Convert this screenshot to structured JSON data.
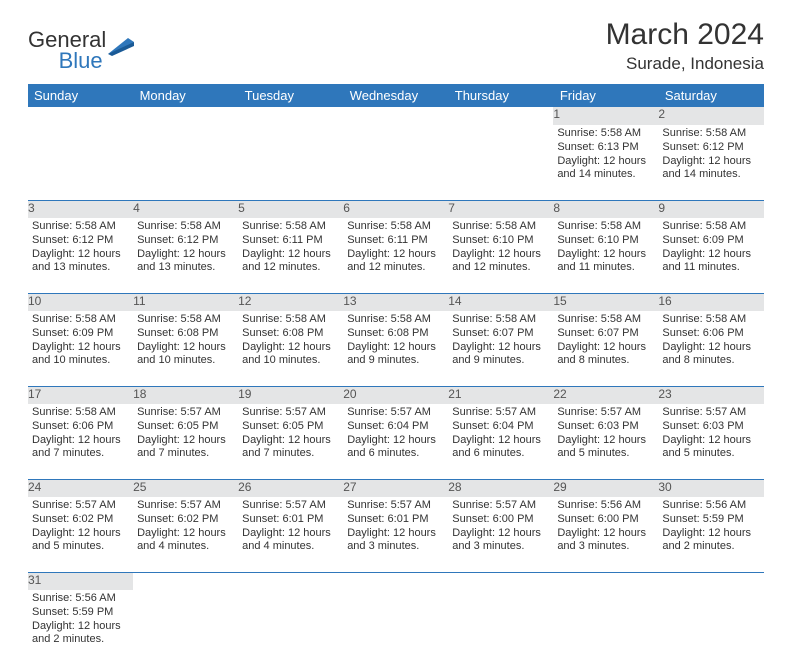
{
  "logo": {
    "general": "General",
    "blue": "Blue"
  },
  "title": "March 2024",
  "location": "Surade, Indonesia",
  "colors": {
    "header_bg": "#2f77bb",
    "header_text": "#ffffff",
    "daynum_bg": "#e4e5e6",
    "daynum_text": "#555555",
    "border": "#2f77bb",
    "body_text": "#333333",
    "page_bg": "#ffffff"
  },
  "weekdays": [
    "Sunday",
    "Monday",
    "Tuesday",
    "Wednesday",
    "Thursday",
    "Friday",
    "Saturday"
  ],
  "cell_fontsize": 11,
  "header_fontsize": 13,
  "title_fontsize": 30,
  "location_fontsize": 17,
  "weeks": [
    [
      null,
      null,
      null,
      null,
      null,
      {
        "n": "1",
        "sr": "Sunrise: 5:58 AM",
        "ss": "Sunset: 6:13 PM",
        "d1": "Daylight: 12 hours",
        "d2": "and 14 minutes."
      },
      {
        "n": "2",
        "sr": "Sunrise: 5:58 AM",
        "ss": "Sunset: 6:12 PM",
        "d1": "Daylight: 12 hours",
        "d2": "and 14 minutes."
      }
    ],
    [
      {
        "n": "3",
        "sr": "Sunrise: 5:58 AM",
        "ss": "Sunset: 6:12 PM",
        "d1": "Daylight: 12 hours",
        "d2": "and 13 minutes."
      },
      {
        "n": "4",
        "sr": "Sunrise: 5:58 AM",
        "ss": "Sunset: 6:12 PM",
        "d1": "Daylight: 12 hours",
        "d2": "and 13 minutes."
      },
      {
        "n": "5",
        "sr": "Sunrise: 5:58 AM",
        "ss": "Sunset: 6:11 PM",
        "d1": "Daylight: 12 hours",
        "d2": "and 12 minutes."
      },
      {
        "n": "6",
        "sr": "Sunrise: 5:58 AM",
        "ss": "Sunset: 6:11 PM",
        "d1": "Daylight: 12 hours",
        "d2": "and 12 minutes."
      },
      {
        "n": "7",
        "sr": "Sunrise: 5:58 AM",
        "ss": "Sunset: 6:10 PM",
        "d1": "Daylight: 12 hours",
        "d2": "and 12 minutes."
      },
      {
        "n": "8",
        "sr": "Sunrise: 5:58 AM",
        "ss": "Sunset: 6:10 PM",
        "d1": "Daylight: 12 hours",
        "d2": "and 11 minutes."
      },
      {
        "n": "9",
        "sr": "Sunrise: 5:58 AM",
        "ss": "Sunset: 6:09 PM",
        "d1": "Daylight: 12 hours",
        "d2": "and 11 minutes."
      }
    ],
    [
      {
        "n": "10",
        "sr": "Sunrise: 5:58 AM",
        "ss": "Sunset: 6:09 PM",
        "d1": "Daylight: 12 hours",
        "d2": "and 10 minutes."
      },
      {
        "n": "11",
        "sr": "Sunrise: 5:58 AM",
        "ss": "Sunset: 6:08 PM",
        "d1": "Daylight: 12 hours",
        "d2": "and 10 minutes."
      },
      {
        "n": "12",
        "sr": "Sunrise: 5:58 AM",
        "ss": "Sunset: 6:08 PM",
        "d1": "Daylight: 12 hours",
        "d2": "and 10 minutes."
      },
      {
        "n": "13",
        "sr": "Sunrise: 5:58 AM",
        "ss": "Sunset: 6:08 PM",
        "d1": "Daylight: 12 hours",
        "d2": "and 9 minutes."
      },
      {
        "n": "14",
        "sr": "Sunrise: 5:58 AM",
        "ss": "Sunset: 6:07 PM",
        "d1": "Daylight: 12 hours",
        "d2": "and 9 minutes."
      },
      {
        "n": "15",
        "sr": "Sunrise: 5:58 AM",
        "ss": "Sunset: 6:07 PM",
        "d1": "Daylight: 12 hours",
        "d2": "and 8 minutes."
      },
      {
        "n": "16",
        "sr": "Sunrise: 5:58 AM",
        "ss": "Sunset: 6:06 PM",
        "d1": "Daylight: 12 hours",
        "d2": "and 8 minutes."
      }
    ],
    [
      {
        "n": "17",
        "sr": "Sunrise: 5:58 AM",
        "ss": "Sunset: 6:06 PM",
        "d1": "Daylight: 12 hours",
        "d2": "and 7 minutes."
      },
      {
        "n": "18",
        "sr": "Sunrise: 5:57 AM",
        "ss": "Sunset: 6:05 PM",
        "d1": "Daylight: 12 hours",
        "d2": "and 7 minutes."
      },
      {
        "n": "19",
        "sr": "Sunrise: 5:57 AM",
        "ss": "Sunset: 6:05 PM",
        "d1": "Daylight: 12 hours",
        "d2": "and 7 minutes."
      },
      {
        "n": "20",
        "sr": "Sunrise: 5:57 AM",
        "ss": "Sunset: 6:04 PM",
        "d1": "Daylight: 12 hours",
        "d2": "and 6 minutes."
      },
      {
        "n": "21",
        "sr": "Sunrise: 5:57 AM",
        "ss": "Sunset: 6:04 PM",
        "d1": "Daylight: 12 hours",
        "d2": "and 6 minutes."
      },
      {
        "n": "22",
        "sr": "Sunrise: 5:57 AM",
        "ss": "Sunset: 6:03 PM",
        "d1": "Daylight: 12 hours",
        "d2": "and 5 minutes."
      },
      {
        "n": "23",
        "sr": "Sunrise: 5:57 AM",
        "ss": "Sunset: 6:03 PM",
        "d1": "Daylight: 12 hours",
        "d2": "and 5 minutes."
      }
    ],
    [
      {
        "n": "24",
        "sr": "Sunrise: 5:57 AM",
        "ss": "Sunset: 6:02 PM",
        "d1": "Daylight: 12 hours",
        "d2": "and 5 minutes."
      },
      {
        "n": "25",
        "sr": "Sunrise: 5:57 AM",
        "ss": "Sunset: 6:02 PM",
        "d1": "Daylight: 12 hours",
        "d2": "and 4 minutes."
      },
      {
        "n": "26",
        "sr": "Sunrise: 5:57 AM",
        "ss": "Sunset: 6:01 PM",
        "d1": "Daylight: 12 hours",
        "d2": "and 4 minutes."
      },
      {
        "n": "27",
        "sr": "Sunrise: 5:57 AM",
        "ss": "Sunset: 6:01 PM",
        "d1": "Daylight: 12 hours",
        "d2": "and 3 minutes."
      },
      {
        "n": "28",
        "sr": "Sunrise: 5:57 AM",
        "ss": "Sunset: 6:00 PM",
        "d1": "Daylight: 12 hours",
        "d2": "and 3 minutes."
      },
      {
        "n": "29",
        "sr": "Sunrise: 5:56 AM",
        "ss": "Sunset: 6:00 PM",
        "d1": "Daylight: 12 hours",
        "d2": "and 3 minutes."
      },
      {
        "n": "30",
        "sr": "Sunrise: 5:56 AM",
        "ss": "Sunset: 5:59 PM",
        "d1": "Daylight: 12 hours",
        "d2": "and 2 minutes."
      }
    ],
    [
      {
        "n": "31",
        "sr": "Sunrise: 5:56 AM",
        "ss": "Sunset: 5:59 PM",
        "d1": "Daylight: 12 hours",
        "d2": "and 2 minutes."
      },
      null,
      null,
      null,
      null,
      null,
      null
    ]
  ]
}
